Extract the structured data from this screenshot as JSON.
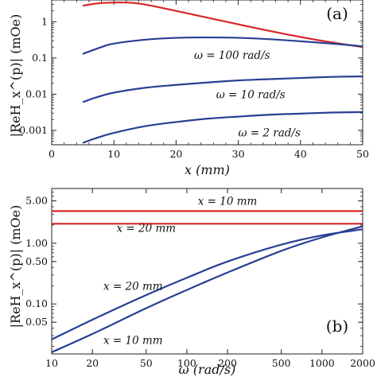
{
  "chart_data": [
    {
      "type": "line",
      "panel_label": "(a)",
      "xlabel": "x (mm)",
      "ylabel": "|ReH_x^(p)| (mOe)",
      "xlim": [
        0,
        50
      ],
      "ylim": [
        0.0004,
        4
      ],
      "yscale": "log",
      "x_ticks": [
        0,
        10,
        20,
        30,
        40,
        50
      ],
      "y_ticks": [
        0.001,
        0.01,
        0.1,
        1
      ],
      "y_tick_labels": [
        "0.001",
        "0.01",
        "0.1",
        "1"
      ],
      "grid": false,
      "series": [
        {
          "name": "",
          "color": "#d62728",
          "x": [
            5,
            8,
            12,
            15,
            20,
            25,
            30,
            35,
            40,
            45,
            50
          ],
          "y": [
            2.8,
            3.3,
            3.4,
            3.0,
            2.0,
            1.3,
            0.85,
            0.56,
            0.38,
            0.27,
            0.2
          ]
        },
        {
          "name": "ω = 100 rad/s",
          "color": "#2a3f93",
          "x": [
            5,
            8,
            10,
            15,
            20,
            25,
            30,
            35,
            40,
            45,
            50
          ],
          "y": [
            0.13,
            0.2,
            0.25,
            0.32,
            0.36,
            0.37,
            0.36,
            0.33,
            0.29,
            0.25,
            0.21
          ]
        },
        {
          "name": "ω = 10 rad/s",
          "color": "#2a3f93",
          "x": [
            5,
            7,
            10,
            15,
            20,
            25,
            30,
            35,
            40,
            45,
            50
          ],
          "y": [
            0.006,
            0.008,
            0.011,
            0.015,
            0.018,
            0.021,
            0.024,
            0.026,
            0.028,
            0.03,
            0.031
          ]
        },
        {
          "name": "ω = 2 rad/s",
          "color": "#2a3f93",
          "x": [
            5,
            7,
            10,
            15,
            20,
            25,
            30,
            35,
            40,
            45,
            50
          ],
          "y": [
            0.00045,
            0.0006,
            0.00085,
            0.0013,
            0.0017,
            0.0021,
            0.0024,
            0.0027,
            0.0029,
            0.0031,
            0.0032
          ]
        }
      ],
      "annotations": [
        {
          "text": "ω = 100 rad/s",
          "x": 29,
          "y": 0.095
        },
        {
          "text": "ω = 10 rad/s",
          "x": 32,
          "y": 0.0078
        },
        {
          "text": "ω = 2 rad/s",
          "x": 35,
          "y": 0.00068
        }
      ]
    },
    {
      "type": "line",
      "panel_label": "(b)",
      "xlabel": "ω (rad/s)",
      "ylabel": "|ReH_x^(p)| (mOe)",
      "xlim": [
        10,
        2000
      ],
      "ylim": [
        0.015,
        8
      ],
      "xscale": "log",
      "yscale": "log",
      "x_ticks": [
        10,
        20,
        50,
        100,
        200,
        500,
        1000,
        2000
      ],
      "y_ticks": [
        0.05,
        0.1,
        0.5,
        1,
        5
      ],
      "y_tick_labels": [
        "0.05",
        "0.10",
        "0.50",
        "1.00",
        "5.00"
      ],
      "grid": false,
      "series": [
        {
          "name": "x = 10 mm",
          "color": "#d62728",
          "x": [
            10,
            2000
          ],
          "y": [
            3.4,
            3.4
          ]
        },
        {
          "name": "x = 20 mm",
          "color": "#d62728",
          "x": [
            10,
            2000
          ],
          "y": [
            2.1,
            2.1
          ]
        },
        {
          "name": "x = 20 mm",
          "color": "#2a3f93",
          "x": [
            10,
            20,
            50,
            100,
            200,
            500,
            1000,
            2000
          ],
          "y": [
            0.026,
            0.055,
            0.14,
            0.27,
            0.5,
            0.95,
            1.35,
            1.7
          ]
        },
        {
          "name": "x = 10 mm",
          "color": "#2a3f93",
          "x": [
            10,
            20,
            50,
            100,
            200,
            500,
            1000,
            2000
          ],
          "y": [
            0.016,
            0.032,
            0.085,
            0.17,
            0.33,
            0.75,
            1.25,
            1.9
          ]
        }
      ],
      "annotations": [
        {
          "text": "x = 10 mm",
          "x": 200,
          "y": 4.3
        },
        {
          "text": "x = 20 mm",
          "x": 50,
          "y": 1.55
        },
        {
          "text": "x = 20 mm",
          "x": 40,
          "y": 0.17
        },
        {
          "text": "x = 10 mm",
          "x": 40,
          "y": 0.022
        }
      ]
    }
  ]
}
